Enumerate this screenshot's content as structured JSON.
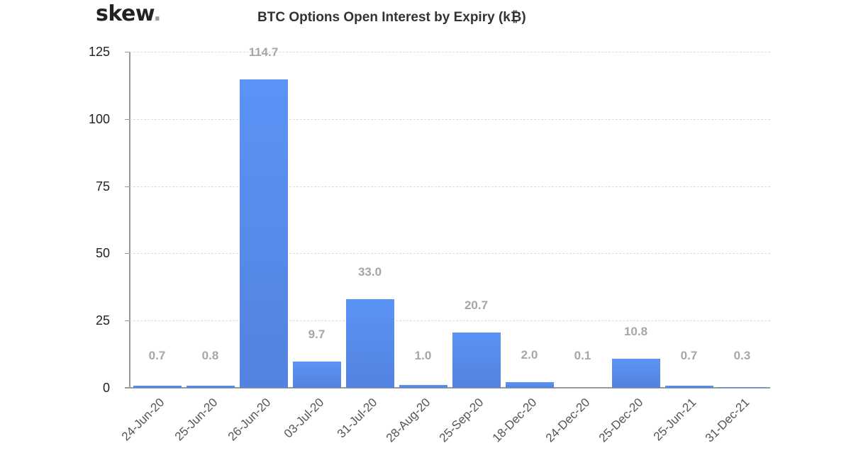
{
  "header": {
    "logo_text": "skew",
    "logo_dot": ".",
    "title": "BTC Options Open Interest by Expiry (k₿)"
  },
  "colors": {
    "bar_top": "#5b93f6",
    "bar_bottom": "#5382e0",
    "value_label": "#a6a6a6",
    "axis": "#999999",
    "grid": "#dcdcdc"
  },
  "axis": {
    "y_ticks": [
      "0",
      "25",
      "50",
      "75",
      "100",
      "125"
    ]
  },
  "chart_data": {
    "type": "bar",
    "title": "BTC Options Open Interest by Expiry (k₿)",
    "xlabel": "",
    "ylabel": "",
    "ylim": [
      0,
      125
    ],
    "y_ticks": [
      0,
      25,
      50,
      75,
      100,
      125
    ],
    "grid": true,
    "legend": null,
    "categories": [
      "24-Jun-20",
      "25-Jun-20",
      "26-Jun-20",
      "03-Jul-20",
      "31-Jul-20",
      "28-Aug-20",
      "25-Sep-20",
      "18-Dec-20",
      "24-Dec-20",
      "25-Dec-20",
      "25-Jun-21",
      "31-Dec-21"
    ],
    "values": [
      0.7,
      0.8,
      114.7,
      9.7,
      33.0,
      1.0,
      20.7,
      2.0,
      0.1,
      10.8,
      0.7,
      0.3
    ],
    "labels": [
      "0.7",
      "0.8",
      "114.7",
      "9.7",
      "33.0",
      "1.0",
      "20.7",
      "2.0",
      "0.1",
      "10.8",
      "0.7",
      "0.3"
    ]
  }
}
